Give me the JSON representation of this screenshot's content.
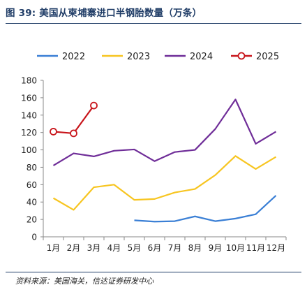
{
  "header": {
    "title": "图 39:  美国从柬埔寨进口半钢胎数量（万条）"
  },
  "footer": {
    "source": "资料来源：美国海关，信达证券研发中心"
  },
  "chart_data": {
    "type": "line",
    "categories": [
      "1月",
      "2月",
      "3月",
      "4月",
      "5月",
      "6月",
      "7月",
      "8月",
      "9月",
      "10月",
      "11月",
      "12月"
    ],
    "ylim": [
      0,
      180
    ],
    "yticks": [
      0,
      20,
      40,
      60,
      80,
      100,
      120,
      140,
      160,
      180
    ],
    "grid": false,
    "legend_position": "top",
    "series": [
      {
        "name": "2022",
        "color": "#3a7fd5",
        "marker": false,
        "values": [
          null,
          null,
          null,
          null,
          19,
          17.5,
          18,
          23.5,
          18,
          21,
          26,
          47.5
        ]
      },
      {
        "name": "2023",
        "color": "#f7c520",
        "marker": false,
        "values": [
          44.5,
          31,
          57,
          60,
          42.5,
          43.5,
          51,
          55,
          71,
          93,
          78,
          92
        ]
      },
      {
        "name": "2024",
        "color": "#6f2d98",
        "marker": false,
        "values": [
          82,
          96,
          92.5,
          99,
          100.5,
          87,
          97.5,
          100,
          124,
          158,
          107,
          121
        ]
      },
      {
        "name": "2025",
        "color": "#c8151b",
        "marker": true,
        "values": [
          121,
          119,
          151,
          null,
          null,
          null,
          null,
          null,
          null,
          null,
          null,
          null
        ]
      }
    ]
  }
}
